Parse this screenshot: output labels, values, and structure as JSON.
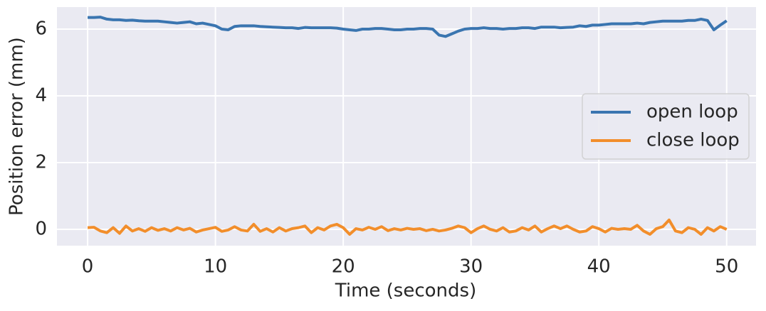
{
  "chart_data": {
    "type": "line",
    "x_label": "Time (seconds)",
    "y_label": "Position error (mm)",
    "x": [
      0,
      0.5,
      1,
      1.5,
      2,
      2.5,
      3,
      3.5,
      4,
      4.5,
      5,
      5.5,
      6,
      6.5,
      7,
      7.5,
      8,
      8.5,
      9,
      9.5,
      10,
      10.5,
      11,
      11.5,
      12,
      12.5,
      13,
      13.5,
      14,
      14.5,
      15,
      15.5,
      16,
      16.5,
      17,
      17.5,
      18,
      18.5,
      19,
      19.5,
      20,
      20.5,
      21,
      21.5,
      22,
      22.5,
      23,
      23.5,
      24,
      24.5,
      25,
      25.5,
      26,
      26.5,
      27,
      27.5,
      28,
      28.5,
      29,
      29.5,
      30,
      30.5,
      31,
      31.5,
      32,
      32.5,
      33,
      33.5,
      34,
      34.5,
      35,
      35.5,
      36,
      36.5,
      37,
      37.5,
      38,
      38.5,
      39,
      39.5,
      40,
      40.5,
      41,
      41.5,
      42,
      42.5,
      43,
      43.5,
      44,
      44.5,
      45,
      45.5,
      46,
      46.5,
      47,
      47.5,
      48,
      48.5,
      49,
      49.5,
      50
    ],
    "series": [
      {
        "name": "open loop",
        "color": "#3a75b0",
        "values": [
          6.35,
          6.35,
          6.36,
          6.3,
          6.28,
          6.28,
          6.26,
          6.27,
          6.25,
          6.24,
          6.24,
          6.24,
          6.22,
          6.2,
          6.18,
          6.2,
          6.22,
          6.16,
          6.18,
          6.14,
          6.1,
          6.0,
          5.98,
          6.08,
          6.1,
          6.1,
          6.1,
          6.08,
          6.07,
          6.06,
          6.05,
          6.04,
          6.04,
          6.02,
          6.05,
          6.04,
          6.04,
          6.04,
          6.04,
          6.03,
          6.0,
          5.98,
          5.96,
          6.0,
          6.0,
          6.02,
          6.02,
          6.0,
          5.98,
          5.98,
          6.0,
          6.0,
          6.02,
          6.02,
          6.0,
          5.82,
          5.78,
          5.86,
          5.94,
          6.0,
          6.02,
          6.02,
          6.04,
          6.02,
          6.02,
          6.0,
          6.02,
          6.02,
          6.04,
          6.04,
          6.02,
          6.06,
          6.06,
          6.06,
          6.04,
          6.05,
          6.06,
          6.1,
          6.08,
          6.12,
          6.12,
          6.14,
          6.16,
          6.16,
          6.16,
          6.16,
          6.18,
          6.16,
          6.2,
          6.22,
          6.24,
          6.24,
          6.24,
          6.24,
          6.26,
          6.26,
          6.3,
          6.26,
          5.98,
          6.12,
          6.25
        ]
      },
      {
        "name": "close loop",
        "color": "#f28e2b",
        "values": [
          0.05,
          0.06,
          -0.05,
          -0.1,
          0.05,
          -0.12,
          0.1,
          -0.05,
          0.02,
          -0.06,
          0.05,
          -0.03,
          0.02,
          -0.05,
          0.05,
          -0.02,
          0.03,
          -0.08,
          -0.02,
          0.02,
          0.06,
          -0.06,
          -0.02,
          0.08,
          -0.02,
          -0.05,
          0.15,
          -0.06,
          0.02,
          -0.08,
          0.05,
          -0.05,
          0.02,
          0.05,
          0.1,
          -0.1,
          0.05,
          -0.02,
          0.1,
          0.15,
          0.05,
          -0.15,
          0.02,
          -0.02,
          0.06,
          0.0,
          0.08,
          -0.04,
          0.02,
          -0.02,
          0.03,
          0.0,
          0.02,
          -0.04,
          0.0,
          -0.05,
          -0.02,
          0.03,
          0.1,
          0.05,
          -0.1,
          0.02,
          0.1,
          0.0,
          -0.05,
          0.05,
          -0.08,
          -0.05,
          0.05,
          -0.02,
          0.1,
          -0.08,
          0.02,
          0.1,
          0.02,
          0.1,
          0.0,
          -0.08,
          -0.05,
          0.08,
          0.02,
          -0.08,
          0.03,
          0.0,
          0.02,
          0.0,
          0.12,
          -0.05,
          -0.15,
          0.02,
          0.08,
          0.28,
          -0.05,
          -0.1,
          0.05,
          0.0,
          -0.15,
          0.05,
          -0.05,
          0.08,
          0.0
        ]
      }
    ],
    "xlim": [
      -2.4,
      52.3
    ],
    "xticks": [
      0,
      10,
      20,
      30,
      40,
      50
    ],
    "ylim": [
      -0.49,
      6.66
    ],
    "yticks": [
      0,
      2,
      4,
      6
    ],
    "grid": true,
    "legend": "center right"
  }
}
